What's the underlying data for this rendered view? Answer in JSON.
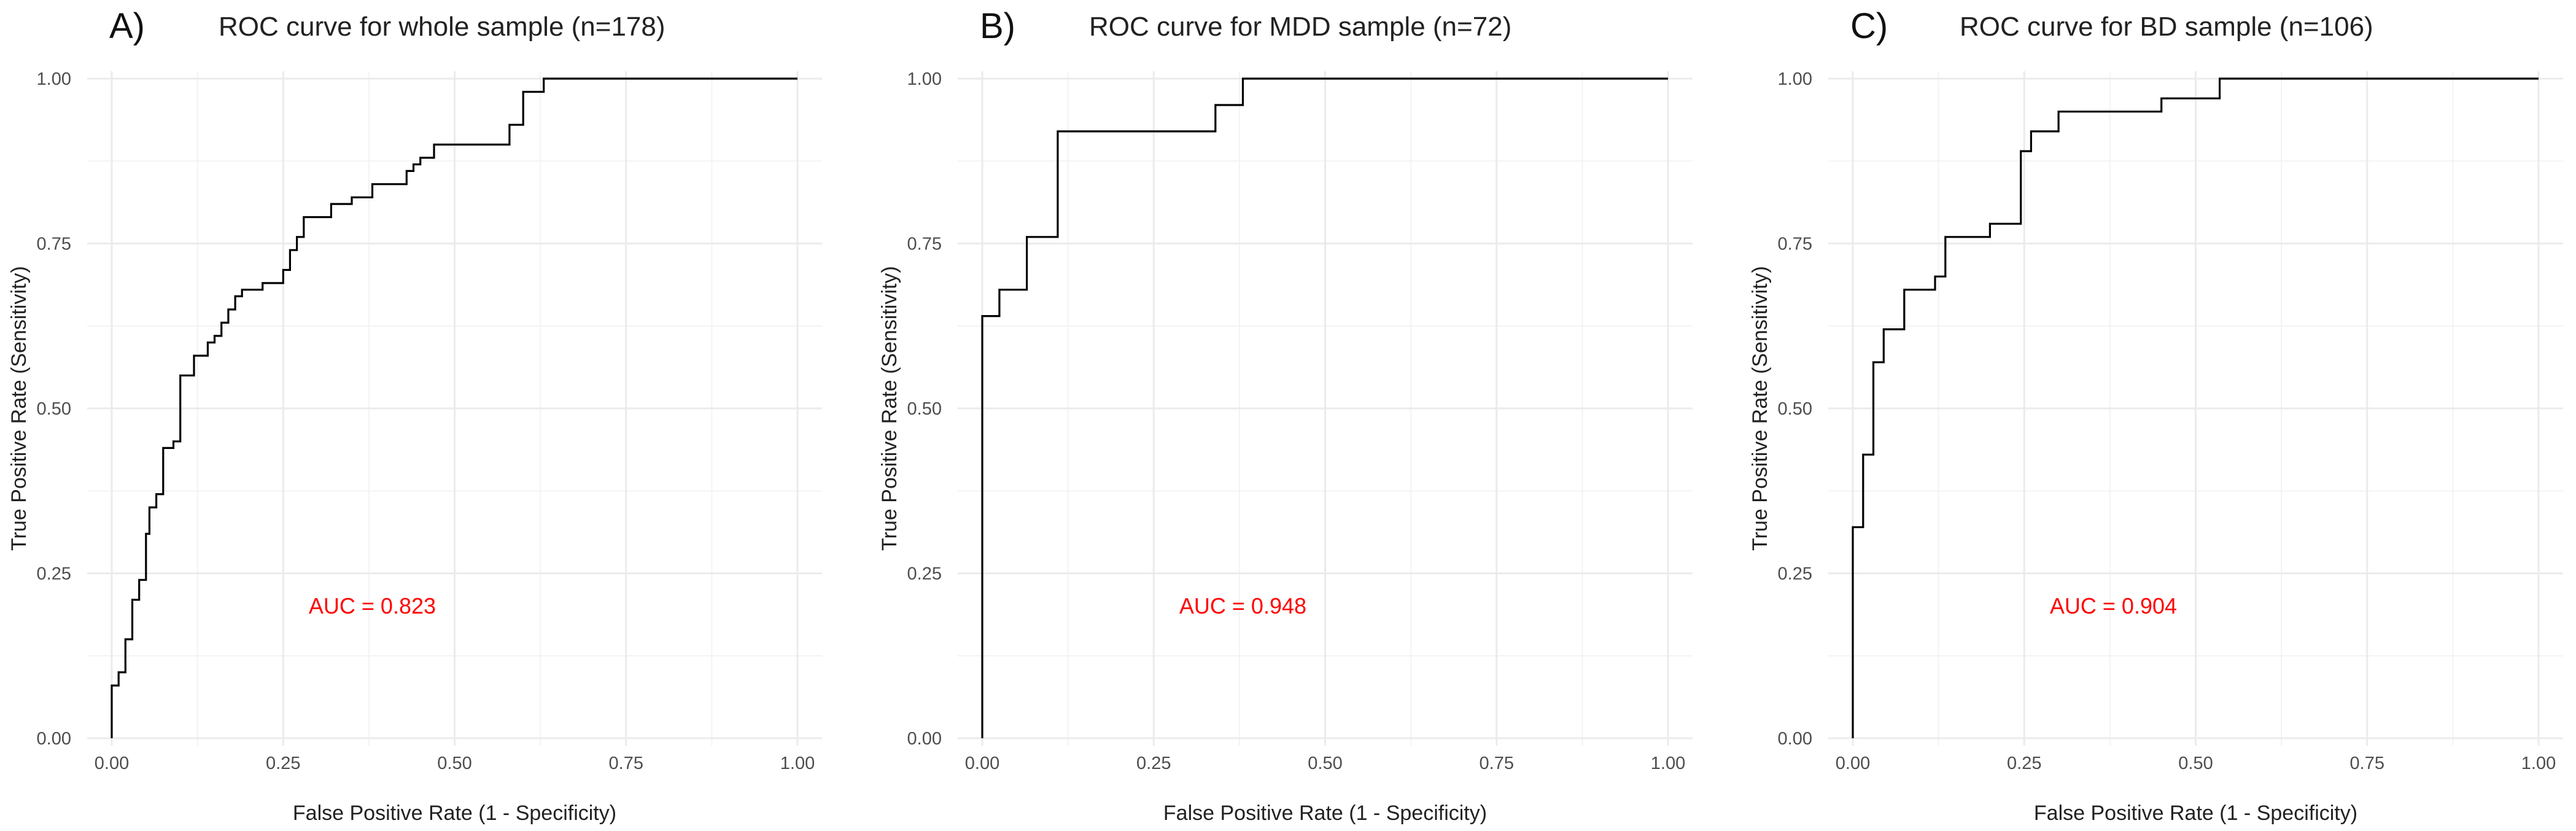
{
  "chart_data": [
    {
      "type": "line",
      "panel_label": "A)",
      "title": "ROC curve for whole sample (n=178)",
      "xlabel": "False Positive Rate (1 - Specificity)",
      "ylabel": "True Positive Rate (Sensitivity)",
      "xlim": [
        0,
        1
      ],
      "ylim": [
        0,
        1
      ],
      "xticks": [
        "0.00",
        "0.25",
        "0.50",
        "0.75",
        "1.00"
      ],
      "yticks": [
        "0.00",
        "0.25",
        "0.50",
        "0.75",
        "1.00"
      ],
      "grid": true,
      "annotation": {
        "text": "AUC =  0.823",
        "x": 0.38,
        "y": 0.2,
        "color": "#ff0000"
      },
      "series": [
        {
          "name": "ROC",
          "step_points": [
            [
              0.0,
              0.0
            ],
            [
              0.0,
              0.08
            ],
            [
              0.01,
              0.08
            ],
            [
              0.01,
              0.1
            ],
            [
              0.02,
              0.1
            ],
            [
              0.02,
              0.15
            ],
            [
              0.03,
              0.15
            ],
            [
              0.03,
              0.21
            ],
            [
              0.04,
              0.21
            ],
            [
              0.04,
              0.24
            ],
            [
              0.05,
              0.24
            ],
            [
              0.05,
              0.31
            ],
            [
              0.055,
              0.31
            ],
            [
              0.055,
              0.35
            ],
            [
              0.065,
              0.35
            ],
            [
              0.065,
              0.37
            ],
            [
              0.075,
              0.37
            ],
            [
              0.075,
              0.44
            ],
            [
              0.09,
              0.44
            ],
            [
              0.09,
              0.45
            ],
            [
              0.1,
              0.45
            ],
            [
              0.1,
              0.55
            ],
            [
              0.12,
              0.55
            ],
            [
              0.12,
              0.58
            ],
            [
              0.14,
              0.58
            ],
            [
              0.14,
              0.6
            ],
            [
              0.15,
              0.6
            ],
            [
              0.15,
              0.61
            ],
            [
              0.16,
              0.61
            ],
            [
              0.16,
              0.63
            ],
            [
              0.17,
              0.63
            ],
            [
              0.17,
              0.65
            ],
            [
              0.18,
              0.65
            ],
            [
              0.18,
              0.67
            ],
            [
              0.19,
              0.67
            ],
            [
              0.19,
              0.68
            ],
            [
              0.22,
              0.68
            ],
            [
              0.22,
              0.69
            ],
            [
              0.25,
              0.69
            ],
            [
              0.25,
              0.71
            ],
            [
              0.26,
              0.71
            ],
            [
              0.26,
              0.74
            ],
            [
              0.27,
              0.74
            ],
            [
              0.27,
              0.76
            ],
            [
              0.28,
              0.76
            ],
            [
              0.28,
              0.79
            ],
            [
              0.32,
              0.79
            ],
            [
              0.32,
              0.81
            ],
            [
              0.35,
              0.81
            ],
            [
              0.35,
              0.82
            ],
            [
              0.38,
              0.82
            ],
            [
              0.38,
              0.84
            ],
            [
              0.43,
              0.84
            ],
            [
              0.43,
              0.86
            ],
            [
              0.44,
              0.86
            ],
            [
              0.44,
              0.87
            ],
            [
              0.45,
              0.87
            ],
            [
              0.45,
              0.88
            ],
            [
              0.47,
              0.88
            ],
            [
              0.47,
              0.9
            ],
            [
              0.58,
              0.9
            ],
            [
              0.58,
              0.93
            ],
            [
              0.6,
              0.93
            ],
            [
              0.6,
              0.98
            ],
            [
              0.63,
              0.98
            ],
            [
              0.63,
              1.0
            ],
            [
              1.0,
              1.0
            ]
          ]
        }
      ]
    },
    {
      "type": "line",
      "panel_label": "B)",
      "title": "ROC curve for MDD sample (n=72)",
      "xlabel": "False Positive Rate (1 - Specificity)",
      "ylabel": "True Positive Rate (Sensitivity)",
      "xlim": [
        0,
        1
      ],
      "ylim": [
        0,
        1
      ],
      "xticks": [
        "0.00",
        "0.25",
        "0.50",
        "0.75",
        "1.00"
      ],
      "yticks": [
        "0.00",
        "0.25",
        "0.50",
        "0.75",
        "1.00"
      ],
      "grid": true,
      "annotation": {
        "text": "AUC =  0.948",
        "x": 0.38,
        "y": 0.2,
        "color": "#ff0000"
      },
      "series": [
        {
          "name": "ROC",
          "step_points": [
            [
              0.0,
              0.0
            ],
            [
              0.0,
              0.64
            ],
            [
              0.025,
              0.64
            ],
            [
              0.025,
              0.68
            ],
            [
              0.065,
              0.68
            ],
            [
              0.065,
              0.76
            ],
            [
              0.11,
              0.76
            ],
            [
              0.11,
              0.92
            ],
            [
              0.34,
              0.92
            ],
            [
              0.34,
              0.96
            ],
            [
              0.38,
              0.96
            ],
            [
              0.38,
              1.0
            ],
            [
              1.0,
              1.0
            ]
          ]
        }
      ]
    },
    {
      "type": "line",
      "panel_label": "C)",
      "title": "ROC curve for BD sample (n=106)",
      "xlabel": "False Positive Rate (1 - Specificity)",
      "ylabel": "True Positive Rate (Sensitivity)",
      "xlim": [
        0,
        1
      ],
      "ylim": [
        0,
        1
      ],
      "xticks": [
        "0.00",
        "0.25",
        "0.50",
        "0.75",
        "1.00"
      ],
      "yticks": [
        "0.00",
        "0.25",
        "0.50",
        "0.75",
        "1.00"
      ],
      "grid": true,
      "annotation": {
        "text": "AUC =  0.904",
        "x": 0.38,
        "y": 0.2,
        "color": "#ff0000"
      },
      "series": [
        {
          "name": "ROC",
          "step_points": [
            [
              0.0,
              0.0
            ],
            [
              0.0,
              0.32
            ],
            [
              0.015,
              0.32
            ],
            [
              0.015,
              0.43
            ],
            [
              0.03,
              0.43
            ],
            [
              0.03,
              0.57
            ],
            [
              0.045,
              0.57
            ],
            [
              0.045,
              0.62
            ],
            [
              0.075,
              0.62
            ],
            [
              0.075,
              0.68
            ],
            [
              0.12,
              0.68
            ],
            [
              0.12,
              0.7
            ],
            [
              0.135,
              0.7
            ],
            [
              0.135,
              0.76
            ],
            [
              0.2,
              0.76
            ],
            [
              0.2,
              0.78
            ],
            [
              0.245,
              0.78
            ],
            [
              0.245,
              0.89
            ],
            [
              0.26,
              0.89
            ],
            [
              0.26,
              0.92
            ],
            [
              0.3,
              0.92
            ],
            [
              0.3,
              0.95
            ],
            [
              0.45,
              0.95
            ],
            [
              0.45,
              0.97
            ],
            [
              0.535,
              0.97
            ],
            [
              0.535,
              1.0
            ],
            [
              1.0,
              1.0
            ]
          ]
        }
      ]
    }
  ]
}
